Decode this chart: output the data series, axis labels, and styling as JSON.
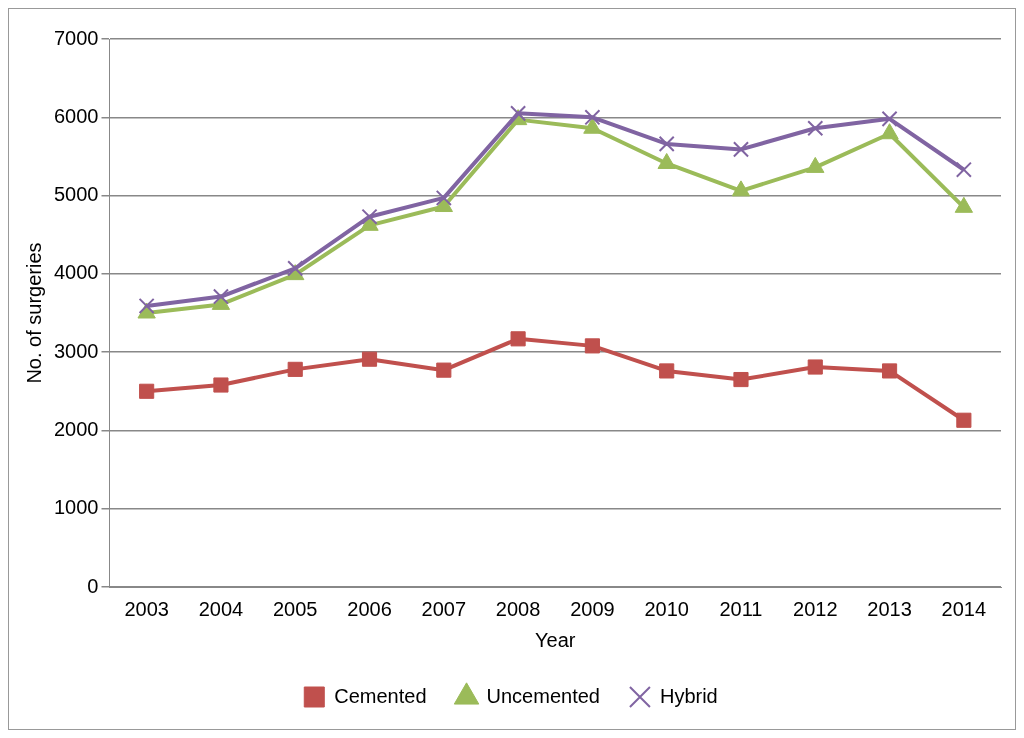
{
  "chart_data": {
    "type": "line",
    "xlabel": "Year",
    "ylabel": "No. of surgeries",
    "categories": [
      "2003",
      "2004",
      "2005",
      "2006",
      "2007",
      "2008",
      "2009",
      "2010",
      "2011",
      "2012",
      "2013",
      "2014"
    ],
    "series": [
      {
        "name": "Cemented",
        "color": "#c0504d",
        "marker": "square",
        "values": [
          2500,
          2580,
          2780,
          2910,
          2770,
          3170,
          3080,
          2760,
          2650,
          2810,
          2760,
          2130
        ]
      },
      {
        "name": "Uncemented",
        "color": "#9bbb59",
        "marker": "triangle",
        "values": [
          3500,
          3610,
          3990,
          4620,
          4860,
          5970,
          5860,
          5410,
          5060,
          5360,
          5790,
          4850
        ]
      },
      {
        "name": "Hybrid",
        "color": "#8064a2",
        "marker": "cross",
        "values": [
          3590,
          3710,
          4070,
          4730,
          4970,
          6050,
          6000,
          5660,
          5590,
          5860,
          5980,
          5330
        ]
      }
    ],
    "ylim": [
      0,
      7000
    ],
    "yticks": [
      0,
      1000,
      2000,
      3000,
      4000,
      5000,
      6000,
      7000
    ],
    "grid": "y",
    "legend": "bottom",
    "line_style": "solid"
  }
}
